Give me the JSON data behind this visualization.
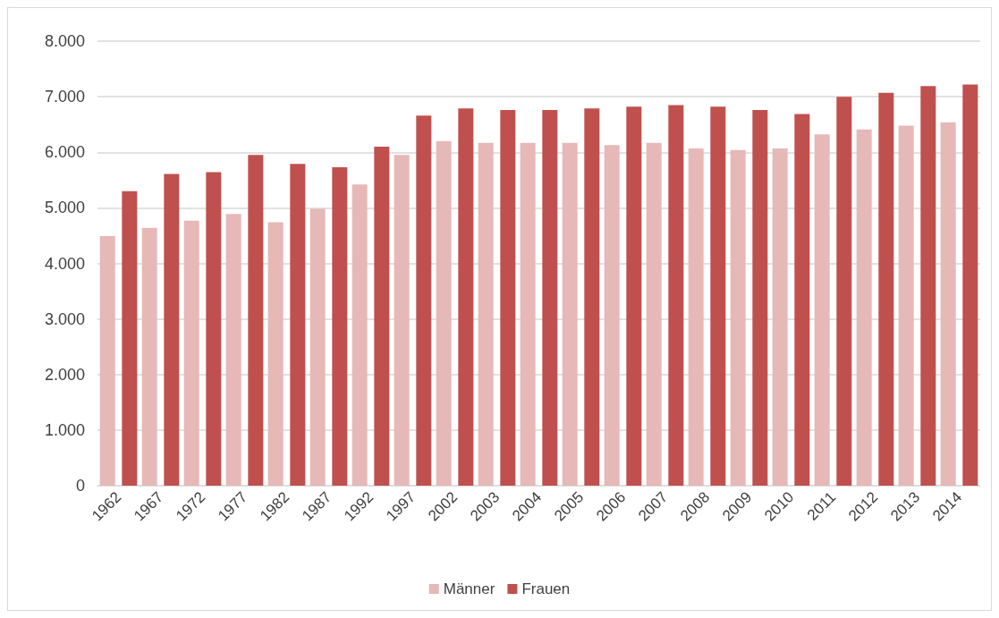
{
  "chart_data": {
    "type": "bar",
    "categories": [
      "1962",
      "1967",
      "1972",
      "1977",
      "1982",
      "1987",
      "1992",
      "1997",
      "2002",
      "2003",
      "2004",
      "2005",
      "2006",
      "2007",
      "2008",
      "2009",
      "2010",
      "2011",
      "2012",
      "2013",
      "2014"
    ],
    "series": [
      {
        "name": "Männer",
        "color": "#e6b8b7",
        "values": [
          4490,
          4640,
          4770,
          4890,
          4740,
          4980,
          5420,
          5950,
          6200,
          6170,
          6170,
          6170,
          6130,
          6170,
          6070,
          6040,
          6070,
          6320,
          6410,
          6480,
          6540
        ]
      },
      {
        "name": "Frauen",
        "color": "#c0504d",
        "values": [
          5300,
          5610,
          5640,
          5950,
          5790,
          5730,
          6100,
          6660,
          6790,
          6760,
          6760,
          6790,
          6820,
          6850,
          6820,
          6760,
          6690,
          7000,
          7070,
          7190,
          7220
        ]
      }
    ],
    "ylim": [
      0,
      8000
    ],
    "yticks": [
      {
        "value": 0,
        "label": "0"
      },
      {
        "value": 1000,
        "label": "1.000"
      },
      {
        "value": 2000,
        "label": "2.000"
      },
      {
        "value": 3000,
        "label": "3.000"
      },
      {
        "value": 4000,
        "label": "4.000"
      },
      {
        "value": 5000,
        "label": "5.000"
      },
      {
        "value": 6000,
        "label": "6.000"
      },
      {
        "value": 7000,
        "label": "7.000"
      },
      {
        "value": 8000,
        "label": "8.000"
      }
    ],
    "grid": "y",
    "legend": "bottom"
  }
}
